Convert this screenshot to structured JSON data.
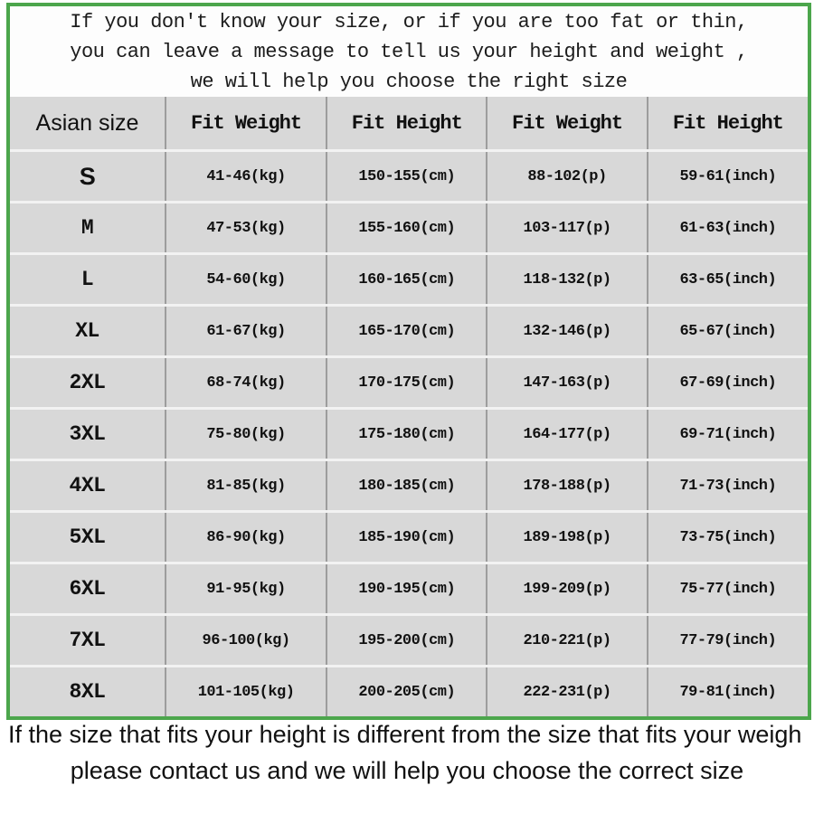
{
  "intro": {
    "lines": [
      "If you don't know your size, or if you are too fat or thin,",
      "you can leave a message to tell us your height and weight ,",
      "we will help you choose the right size"
    ]
  },
  "table": {
    "headers": [
      "Asian size",
      "Fit Weight",
      "Fit Height",
      "Fit Weight",
      "Fit Height"
    ],
    "rows": [
      [
        "S",
        "41-46(kg)",
        "150-155(cm)",
        "88-102(p)",
        "59-61(inch)"
      ],
      [
        "M",
        "47-53(kg)",
        "155-160(cm)",
        "103-117(p)",
        "61-63(inch)"
      ],
      [
        "L",
        "54-60(kg)",
        "160-165(cm)",
        "118-132(p)",
        "63-65(inch)"
      ],
      [
        "XL",
        "61-67(kg)",
        "165-170(cm)",
        "132-146(p)",
        "65-67(inch)"
      ],
      [
        "2XL",
        "68-74(kg)",
        "170-175(cm)",
        "147-163(p)",
        "67-69(inch)"
      ],
      [
        "3XL",
        "75-80(kg)",
        "175-180(cm)",
        "164-177(p)",
        "69-71(inch)"
      ],
      [
        "4XL",
        "81-85(kg)",
        "180-185(cm)",
        "178-188(p)",
        "71-73(inch)"
      ],
      [
        "5XL",
        "86-90(kg)",
        "185-190(cm)",
        "189-198(p)",
        "73-75(inch)"
      ],
      [
        "6XL",
        "91-95(kg)",
        "190-195(cm)",
        "199-209(p)",
        "75-77(inch)"
      ],
      [
        "7XL",
        "96-100(kg)",
        "195-200(cm)",
        "210-221(p)",
        "77-79(inch)"
      ],
      [
        "8XL",
        "101-105(kg)",
        "200-205(cm)",
        "222-231(p)",
        "79-81(inch)"
      ]
    ]
  },
  "footer": {
    "lines": [
      "If the size that fits your height is different from the size that fits your weigh",
      "please contact us and we will help you choose the correct size"
    ]
  },
  "colors": {
    "border_green": "#4ca64c",
    "table_background": "#d8d8d8",
    "column_divider": "#9d9d9d",
    "row_divider": "#f2f2f2",
    "text": "#111111"
  }
}
